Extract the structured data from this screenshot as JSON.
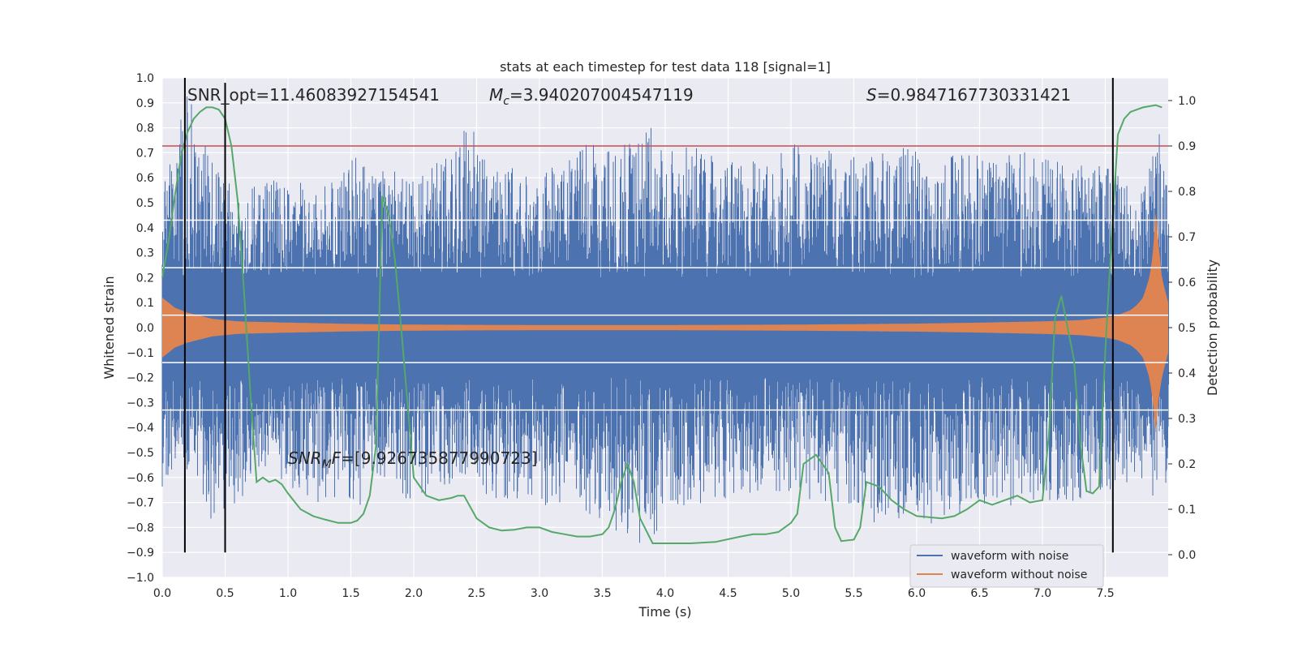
{
  "chart_data": {
    "type": "line",
    "title": "stats at each timestep for test data 118 [signal=1]",
    "xlabel": "Time (s)",
    "ylabel": "Whitened strain",
    "y2label": "Detection probability",
    "xlim": [
      0.0,
      8.0
    ],
    "ylim": [
      -1.0,
      1.0
    ],
    "y2lim": [
      -0.05,
      1.05
    ],
    "xticks": [
      "0.0",
      "0.5",
      "1.0",
      "1.5",
      "2.0",
      "2.5",
      "3.0",
      "3.5",
      "4.0",
      "4.5",
      "5.0",
      "5.5",
      "6.0",
      "6.5",
      "7.0",
      "7.5"
    ],
    "yticks": [
      "-1.0",
      "-0.9",
      "-0.8",
      "-0.7",
      "-0.6",
      "-0.5",
      "-0.4",
      "-0.3",
      "-0.2",
      "-0.1",
      "0.0",
      "0.1",
      "0.2",
      "0.3",
      "0.4",
      "0.5",
      "0.6",
      "0.7",
      "0.8",
      "0.9",
      "1.0"
    ],
    "y2ticks": [
      "0.0",
      "0.1",
      "0.2",
      "0.3",
      "0.4",
      "0.5",
      "0.6",
      "0.7",
      "0.8",
      "0.9",
      "1.0"
    ],
    "grid": true,
    "legend_position": "lower-right",
    "colors": {
      "noise": "#4c72b0",
      "clean": "#dd8452",
      "prob": "#55a868",
      "threshold": "#c44e52",
      "markers": "#000000",
      "background": "#eaeaf2",
      "grid": "#ffffff"
    },
    "annotations": {
      "snr_opt": "SNR_opt=11.46083927154541",
      "mc_symbol": "M",
      "mc_sub": "c",
      "mc_value": "=3.940207004547119",
      "s_symbol": "S",
      "s_value": "=0.9847167730331421",
      "snr_mf_symbol": "SNR",
      "snr_mf_sub": "M",
      "snr_mf_tail": "F",
      "snr_mf_value": "=[9.926735877990723]"
    },
    "series": [
      {
        "name": "waveform with noise",
        "axis": "left",
        "envelope": {
          "x": [
            0.0,
            0.1,
            0.2,
            0.4,
            0.6,
            0.8,
            1.0,
            1.2,
            1.4,
            1.6,
            1.65,
            1.8,
            2.0,
            2.2,
            2.45,
            2.6,
            2.8,
            3.0,
            3.2,
            3.4,
            3.6,
            3.9,
            4.0,
            4.2,
            4.4,
            4.6,
            4.8,
            5.0,
            5.2,
            5.4,
            5.6,
            5.8,
            6.0,
            6.2,
            6.4,
            6.6,
            6.8,
            7.0,
            7.2,
            7.4,
            7.6,
            7.8,
            7.94,
            8.0
          ],
          "max": [
            0.6,
            0.7,
            1.0,
            0.65,
            0.55,
            0.6,
            0.62,
            0.55,
            0.6,
            0.82,
            0.72,
            0.65,
            0.6,
            0.7,
            0.82,
            0.7,
            0.65,
            0.6,
            0.7,
            0.75,
            0.7,
            0.83,
            0.7,
            0.75,
            0.7,
            0.65,
            0.7,
            0.75,
            0.7,
            0.72,
            0.68,
            0.72,
            0.72,
            0.7,
            0.7,
            0.68,
            0.72,
            0.7,
            0.68,
            0.66,
            0.62,
            0.6,
            0.84,
            0.55
          ],
          "min": [
            -0.65,
            -0.55,
            -0.6,
            -0.8,
            -0.7,
            -0.6,
            -0.65,
            -0.7,
            -0.7,
            -0.72,
            -0.6,
            -0.65,
            -0.7,
            -0.65,
            -0.6,
            -0.68,
            -0.7,
            -0.72,
            -0.7,
            -0.78,
            -0.82,
            -0.9,
            -0.7,
            -0.72,
            -0.68,
            -0.7,
            -0.65,
            -0.66,
            -0.7,
            -0.72,
            -0.8,
            -0.78,
            -0.75,
            -0.82,
            -0.72,
            -0.7,
            -0.72,
            -0.7,
            -0.7,
            -0.68,
            -0.65,
            -0.6,
            -0.77,
            -0.6
          ]
        }
      },
      {
        "name": "waveform without noise",
        "axis": "left",
        "envelope": {
          "x": [
            0.0,
            0.1,
            0.2,
            0.4,
            0.6,
            1.0,
            1.5,
            2.0,
            3.0,
            4.0,
            5.0,
            6.0,
            6.5,
            7.0,
            7.3,
            7.5,
            7.6,
            7.7,
            7.75,
            7.8,
            7.85,
            7.88,
            7.9,
            7.92,
            7.95,
            8.0
          ],
          "max": [
            0.12,
            0.08,
            0.06,
            0.035,
            0.025,
            0.02,
            0.015,
            0.012,
            0.01,
            0.01,
            0.012,
            0.016,
            0.02,
            0.025,
            0.03,
            0.04,
            0.05,
            0.07,
            0.09,
            0.12,
            0.2,
            0.3,
            0.49,
            0.35,
            0.2,
            0.1
          ],
          "min": [
            -0.12,
            -0.08,
            -0.06,
            -0.035,
            -0.025,
            -0.02,
            -0.015,
            -0.012,
            -0.01,
            -0.01,
            -0.012,
            -0.016,
            -0.02,
            -0.025,
            -0.03,
            -0.04,
            -0.05,
            -0.07,
            -0.09,
            -0.12,
            -0.2,
            -0.3,
            -0.44,
            -0.3,
            -0.2,
            -0.1
          ]
        }
      },
      {
        "name": "detection probability",
        "axis": "right",
        "x": [
          0.0,
          0.05,
          0.1,
          0.15,
          0.2,
          0.25,
          0.3,
          0.35,
          0.4,
          0.45,
          0.5,
          0.55,
          0.6,
          0.65,
          0.7,
          0.75,
          0.8,
          0.85,
          0.9,
          0.95,
          1.0,
          1.1,
          1.2,
          1.3,
          1.4,
          1.45,
          1.5,
          1.55,
          1.6,
          1.65,
          1.7,
          1.75,
          1.8,
          1.85,
          1.9,
          2.0,
          2.1,
          2.2,
          2.3,
          2.35,
          2.4,
          2.5,
          2.6,
          2.7,
          2.8,
          2.9,
          3.0,
          3.1,
          3.2,
          3.3,
          3.4,
          3.5,
          3.55,
          3.6,
          3.65,
          3.7,
          3.75,
          3.8,
          3.9,
          4.0,
          4.2,
          4.4,
          4.6,
          4.7,
          4.8,
          4.9,
          5.0,
          5.05,
          5.1,
          5.2,
          5.3,
          5.35,
          5.4,
          5.5,
          5.55,
          5.6,
          5.7,
          5.8,
          5.9,
          6.0,
          6.2,
          6.3,
          6.4,
          6.5,
          6.6,
          6.7,
          6.8,
          6.9,
          7.0,
          7.05,
          7.1,
          7.15,
          7.2,
          7.25,
          7.3,
          7.35,
          7.4,
          7.45,
          7.5,
          7.55,
          7.6,
          7.65,
          7.7,
          7.8,
          7.9,
          7.95
        ],
        "y": [
          0.61,
          0.69,
          0.79,
          0.88,
          0.93,
          0.96,
          0.975,
          0.985,
          0.985,
          0.98,
          0.96,
          0.9,
          0.78,
          0.58,
          0.36,
          0.16,
          0.17,
          0.16,
          0.165,
          0.155,
          0.135,
          0.1,
          0.085,
          0.077,
          0.07,
          0.07,
          0.07,
          0.075,
          0.09,
          0.13,
          0.24,
          0.79,
          0.75,
          0.65,
          0.5,
          0.17,
          0.13,
          0.12,
          0.125,
          0.13,
          0.13,
          0.08,
          0.06,
          0.053,
          0.055,
          0.06,
          0.06,
          0.05,
          0.045,
          0.04,
          0.04,
          0.045,
          0.06,
          0.1,
          0.16,
          0.2,
          0.16,
          0.08,
          0.025,
          0.025,
          0.025,
          0.028,
          0.04,
          0.045,
          0.045,
          0.05,
          0.07,
          0.09,
          0.2,
          0.22,
          0.18,
          0.06,
          0.03,
          0.033,
          0.06,
          0.16,
          0.15,
          0.12,
          0.1,
          0.085,
          0.08,
          0.085,
          0.1,
          0.12,
          0.11,
          0.12,
          0.13,
          0.115,
          0.12,
          0.26,
          0.52,
          0.57,
          0.5,
          0.43,
          0.25,
          0.14,
          0.135,
          0.15,
          0.45,
          0.7,
          0.925,
          0.96,
          0.975,
          0.985,
          0.99,
          0.985
        ]
      }
    ],
    "threshold_line": {
      "y2": 0.9
    },
    "white_lines_y": [
      -0.33,
      -0.14,
      0.05,
      0.24,
      0.43
    ],
    "vertical_markers": [
      {
        "x": 0.18,
        "ymin": -0.9,
        "ymax": 1.0
      },
      {
        "x": 0.5,
        "ymin": -0.9,
        "ymax": 0.98
      },
      {
        "x": 7.56,
        "ymin": -0.9,
        "ymax": 1.0
      }
    ],
    "legend": [
      "waveform with noise",
      "waveform without noise"
    ]
  }
}
